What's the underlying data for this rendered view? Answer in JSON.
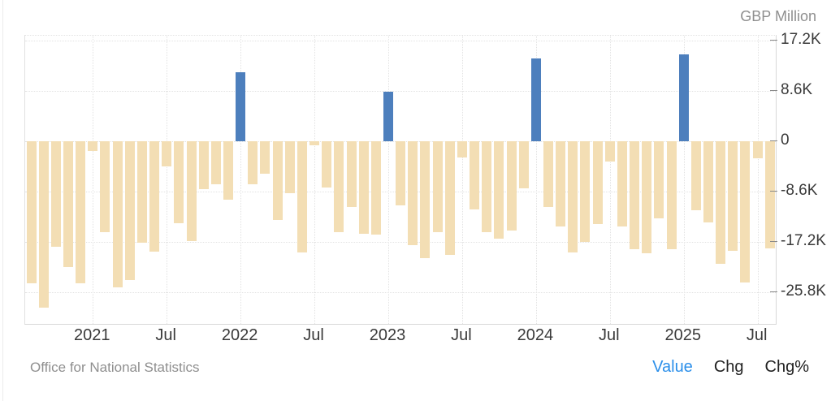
{
  "header": {
    "unit_label": "GBP Million"
  },
  "footer": {
    "source": "Office for National Statistics",
    "views": [
      {
        "label": "Value",
        "active": true
      },
      {
        "label": "Chg",
        "active": false
      },
      {
        "label": "Chg%",
        "active": false
      }
    ]
  },
  "chart_data": {
    "type": "bar",
    "title": "",
    "ylabel": "GBP Million",
    "xlabel": "",
    "grid": "dotted",
    "legend_position": "none",
    "ylim": [
      -31200,
      18000
    ],
    "colors": {
      "positive": "#4d7fbd",
      "negative": "#f3deb4"
    },
    "y_ticks": [
      {
        "value": 17200,
        "label": "17.2K"
      },
      {
        "value": 8600,
        "label": "8.6K"
      },
      {
        "value": 0,
        "label": "0"
      },
      {
        "value": -8600,
        "label": "-8.6K"
      },
      {
        "value": -17200,
        "label": "-17.2K"
      },
      {
        "value": -25800,
        "label": "-25.8K"
      }
    ],
    "x_ticks": [
      {
        "index": 5,
        "label": "2021"
      },
      {
        "index": 11,
        "label": "Jul"
      },
      {
        "index": 17,
        "label": "2022"
      },
      {
        "index": 23,
        "label": "Jul"
      },
      {
        "index": 29,
        "label": "2023"
      },
      {
        "index": 35,
        "label": "Jul"
      },
      {
        "index": 41,
        "label": "2024"
      },
      {
        "index": 47,
        "label": "Jul"
      },
      {
        "index": 53,
        "label": "2025"
      },
      {
        "index": 59,
        "label": "Jul"
      }
    ],
    "months": [
      "Aug 2020",
      "Sep 2020",
      "Oct 2020",
      "Nov 2020",
      "Dec 2020",
      "Jan 2021",
      "Feb 2021",
      "Mar 2021",
      "Apr 2021",
      "May 2021",
      "Jun 2021",
      "Jul 2021",
      "Aug 2021",
      "Sep 2021",
      "Oct 2021",
      "Nov 2021",
      "Dec 2021",
      "Jan 2022",
      "Feb 2022",
      "Mar 2022",
      "Apr 2022",
      "May 2022",
      "Jun 2022",
      "Jul 2022",
      "Aug 2022",
      "Sep 2022",
      "Oct 2022",
      "Nov 2022",
      "Dec 2022",
      "Jan 2023",
      "Feb 2023",
      "Mar 2023",
      "Apr 2023",
      "May 2023",
      "Jun 2023",
      "Jul 2023",
      "Aug 2023",
      "Sep 2023",
      "Oct 2023",
      "Nov 2023",
      "Dec 2023",
      "Jan 2024",
      "Feb 2024",
      "Mar 2024",
      "Apr 2024",
      "May 2024",
      "Jun 2024",
      "Jul 2024",
      "Aug 2024",
      "Sep 2024",
      "Oct 2024",
      "Nov 2024",
      "Dec 2024",
      "Jan 2025",
      "Feb 2025",
      "Mar 2025",
      "Apr 2025",
      "May 2025",
      "Jun 2025",
      "Jul 2025",
      "Aug 2025"
    ],
    "values": [
      -24300,
      -28400,
      -18100,
      -21500,
      -24300,
      -1600,
      -15600,
      -25000,
      -23700,
      -17400,
      -18800,
      -4300,
      -14000,
      -17000,
      -8200,
      -7300,
      -10000,
      11800,
      -7300,
      -5600,
      -13500,
      -8900,
      -19000,
      -700,
      -7900,
      -15600,
      -11300,
      -15800,
      -16000,
      8500,
      -11000,
      -17700,
      -20000,
      -15600,
      -19400,
      -2800,
      -11600,
      -15500,
      -16700,
      -15300,
      -8100,
      14200,
      -11300,
      -14500,
      -19000,
      -17200,
      -14200,
      -3500,
      -14600,
      -18400,
      -19100,
      -13200,
      -18400,
      14800,
      -11800,
      -13900,
      -20900,
      -18700,
      -24100,
      -2900,
      -18300
    ]
  }
}
